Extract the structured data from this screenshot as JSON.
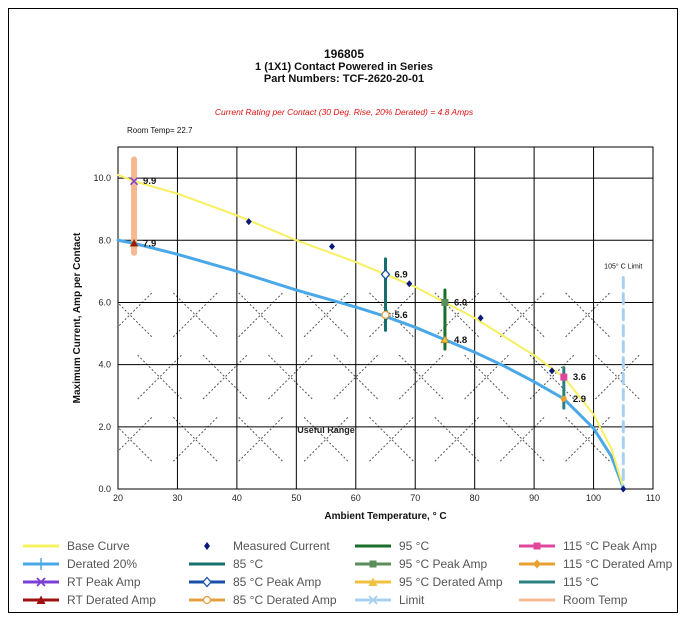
{
  "chart_data": {
    "type": "scatter",
    "title": "196805",
    "title_line2": "1 (1X1) Contact Powered in Series",
    "title_line3": "Part Numbers: TCF-2620-20-01",
    "subtitle": "Current Rating per Contact (30 Deg. Rise, 20% Derated) = 4.8 Amps",
    "annotation_room": "Room Temp= 22.7",
    "annotation_limit": "105° C Limit",
    "annotation_range": "Useful Range",
    "xlabel": "Ambient Temperature, ° C",
    "ylabel": "Maximum Current, Amp per Contact",
    "xlim": [
      20,
      110
    ],
    "ylim": [
      0,
      11
    ],
    "xticks": [
      20,
      30,
      40,
      50,
      60,
      70,
      80,
      90,
      100,
      110
    ],
    "yticks": [
      0,
      2,
      4,
      6,
      8,
      10
    ],
    "ytick_labels": [
      "0.0",
      "2.0",
      "4.0",
      "6.0",
      "8.0",
      "10.0"
    ],
    "grid": true,
    "legend_position": "bottom",
    "series": [
      {
        "name": "Base Curve",
        "color": "#f7f060",
        "x": [
          20,
          22.7,
          30,
          40,
          50,
          60,
          65,
          70,
          75,
          80,
          85,
          90,
          95,
          100,
          103,
          105
        ],
        "y": [
          10.1,
          9.9,
          9.5,
          8.8,
          8.0,
          7.3,
          6.9,
          6.5,
          6.0,
          5.5,
          4.9,
          4.3,
          3.6,
          2.4,
          1.3,
          0.05
        ]
      },
      {
        "name": "Derated 20%",
        "color": "#4aa8e8",
        "x": [
          20,
          22.7,
          30,
          40,
          50,
          60,
          65,
          70,
          75,
          80,
          85,
          90,
          95,
          100,
          103,
          105
        ],
        "y": [
          8.0,
          7.9,
          7.55,
          7.0,
          6.4,
          5.85,
          5.55,
          5.2,
          4.8,
          4.4,
          3.95,
          3.45,
          2.9,
          1.95,
          1.05,
          0.04
        ]
      },
      {
        "name": "RT Peak Amp",
        "color": "#7b3fd6",
        "x": [
          22.7
        ],
        "y": [
          9.9
        ]
      },
      {
        "name": "RT Derated Amp",
        "color": "#a01010",
        "x": [
          22.7
        ],
        "y": [
          7.9
        ]
      },
      {
        "name": "Measured Current",
        "color": "#0a1a7a",
        "x": [
          42,
          56,
          69,
          81,
          93,
          105
        ],
        "y": [
          8.6,
          7.8,
          6.6,
          5.5,
          3.8,
          0.0
        ]
      },
      {
        "name": "85 °C",
        "color": "#176e6e",
        "x": [
          65,
          65
        ],
        "y": [
          7.4,
          5.1
        ]
      },
      {
        "name": "85 °C Peak Amp",
        "color": "#1a4fa8",
        "x": [
          65
        ],
        "y": [
          6.9
        ]
      },
      {
        "name": "85 °C Derated Amp",
        "color": "#e4a040",
        "x": [
          65
        ],
        "y": [
          5.6
        ]
      },
      {
        "name": "95 °C",
        "color": "#1b6e2a",
        "x": [
          75,
          75
        ],
        "y": [
          6.4,
          4.5
        ]
      },
      {
        "name": "95 °C Peak Amp",
        "color": "#5a8e5a",
        "x": [
          75
        ],
        "y": [
          6.0
        ]
      },
      {
        "name": "95 °C Derated Amp",
        "color": "#f0c040",
        "x": [
          75
        ],
        "y": [
          4.8
        ]
      },
      {
        "name": "115 °C",
        "color": "#2a8080",
        "x": [
          95,
          95
        ],
        "y": [
          3.9,
          2.6
        ]
      },
      {
        "name": "115 °C Peak Amp",
        "color": "#e0469e",
        "x": [
          95
        ],
        "y": [
          3.6
        ]
      },
      {
        "name": "115 °C Derated Amp",
        "color": "#e8a030",
        "x": [
          95
        ],
        "y": [
          2.9
        ]
      },
      {
        "name": "Limit",
        "color": "#a8d0f0",
        "x": [
          105,
          105
        ],
        "y": [
          6.8,
          0
        ]
      },
      {
        "name": "Room Temp",
        "color": "#f6b890",
        "x": [
          22.7,
          22.7
        ],
        "y": [
          10.6,
          7.6
        ]
      }
    ],
    "data_labels": [
      {
        "x": 22.7,
        "y": 9.9,
        "text": "9.9"
      },
      {
        "x": 22.7,
        "y": 7.9,
        "text": "7.9"
      },
      {
        "x": 65,
        "y": 6.9,
        "text": "6.9"
      },
      {
        "x": 65,
        "y": 5.6,
        "text": "5.6"
      },
      {
        "x": 75,
        "y": 6.0,
        "text": "6.0"
      },
      {
        "x": 75,
        "y": 4.8,
        "text": "4.8"
      },
      {
        "x": 95,
        "y": 3.6,
        "text": "3.6"
      },
      {
        "x": 95,
        "y": 2.9,
        "text": "2.9"
      }
    ]
  }
}
